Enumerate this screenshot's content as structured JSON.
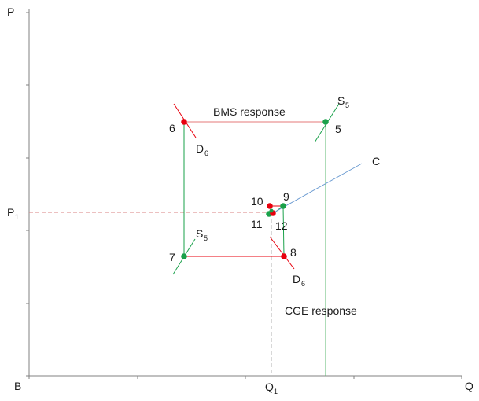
{
  "axes": {
    "y_label": "P",
    "x_label": "Q",
    "origin_label": "B",
    "p1_label": "P",
    "p1_sub": "1",
    "q1_label": "Q",
    "q1_sub": "1"
  },
  "annotations": {
    "bms": "BMS response",
    "cge": "CGE response"
  },
  "curve_labels": {
    "s5_top": {
      "main": "S",
      "sub": "5"
    },
    "d6_top": {
      "main": "D",
      "sub": "6"
    },
    "s5_low": {
      "main": "S",
      "sub": "5"
    },
    "d6_low": {
      "main": "D",
      "sub": "6"
    },
    "c": "C"
  },
  "point_labels": {
    "p5": "5",
    "p6": "6",
    "p7": "7",
    "p8": "8",
    "p9": "9",
    "p10": "10",
    "p11": "11",
    "p12": "12"
  },
  "colors": {
    "red": "#e8000d",
    "green": "#1aa14a",
    "red_line": "#e67a7a",
    "green_line": "#5cb870",
    "blue_line": "#6b9bd1",
    "axis": "#808080",
    "dash_red": "#d98080",
    "dash_gray": "#b0b0b0"
  }
}
